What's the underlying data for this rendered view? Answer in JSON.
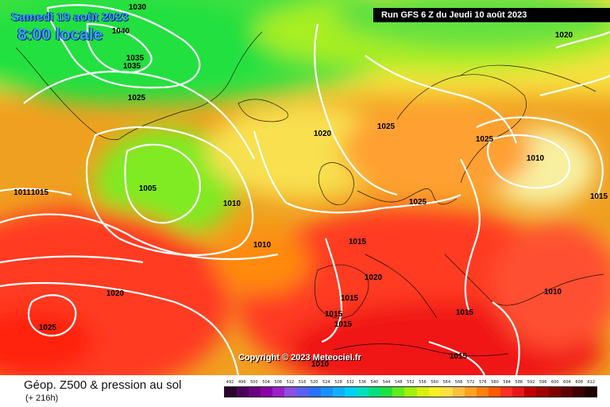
{
  "header": {
    "date": "Samedi 19 août 2023",
    "time": "8:00 locale",
    "run": "Run GFS 6 Z du Jeudi 10 août 2023"
  },
  "copyright": "Copyright © 2023 Meteociel.fr",
  "footer": {
    "title": "Géop. Z500 & pression au sol",
    "subtitle": "(+ 216h)"
  },
  "legend": {
    "values": [
      "492",
      "496",
      "500",
      "504",
      "508",
      "512",
      "516",
      "520",
      "524",
      "528",
      "532",
      "536",
      "540",
      "544",
      "548",
      "552",
      "556",
      "560",
      "564",
      "568",
      "572",
      "576",
      "580",
      "584",
      "588",
      "592",
      "596",
      "600",
      "604",
      "608",
      "612"
    ],
    "colors": [
      "#2b0030",
      "#4a0058",
      "#6a0080",
      "#8a00a8",
      "#9a20c8",
      "#8a50e0",
      "#5a60f0",
      "#2a70ff",
      "#1a90ff",
      "#10b0ff",
      "#00d0f8",
      "#00e0c0",
      "#00e080",
      "#20e040",
      "#60ec20",
      "#a0f010",
      "#d8f010",
      "#f8f020",
      "#ffe040",
      "#ffc040",
      "#ffa020",
      "#ff8010",
      "#ff5a00",
      "#ff3020",
      "#e81818",
      "#c00000",
      "#a00000",
      "#800000",
      "#600000",
      "#400000",
      "#200000"
    ]
  },
  "isobars": [
    {
      "text": "1030"
    },
    {
      "text": "1040"
    },
    {
      "text": "1035"
    },
    {
      "text": "1035"
    },
    {
      "text": "1025"
    },
    {
      "text": "1005"
    },
    {
      "text": "1011"
    },
    {
      "text": "1015"
    },
    {
      "text": "1010"
    },
    {
      "text": "1010"
    },
    {
      "text": "1020"
    },
    {
      "text": "1025"
    },
    {
      "text": "1025"
    },
    {
      "text": "1025"
    },
    {
      "text": "1010"
    },
    {
      "text": "1015"
    },
    {
      "text": "1015"
    },
    {
      "text": "1020"
    },
    {
      "text": "1015"
    },
    {
      "text": "1015"
    },
    {
      "text": "1015"
    },
    {
      "text": "1015"
    },
    {
      "text": "1010"
    },
    {
      "text": "1015"
    },
    {
      "text": "1020"
    },
    {
      "text": "1025"
    },
    {
      "text": "1010"
    },
    {
      "text": "1020"
    }
  ]
}
